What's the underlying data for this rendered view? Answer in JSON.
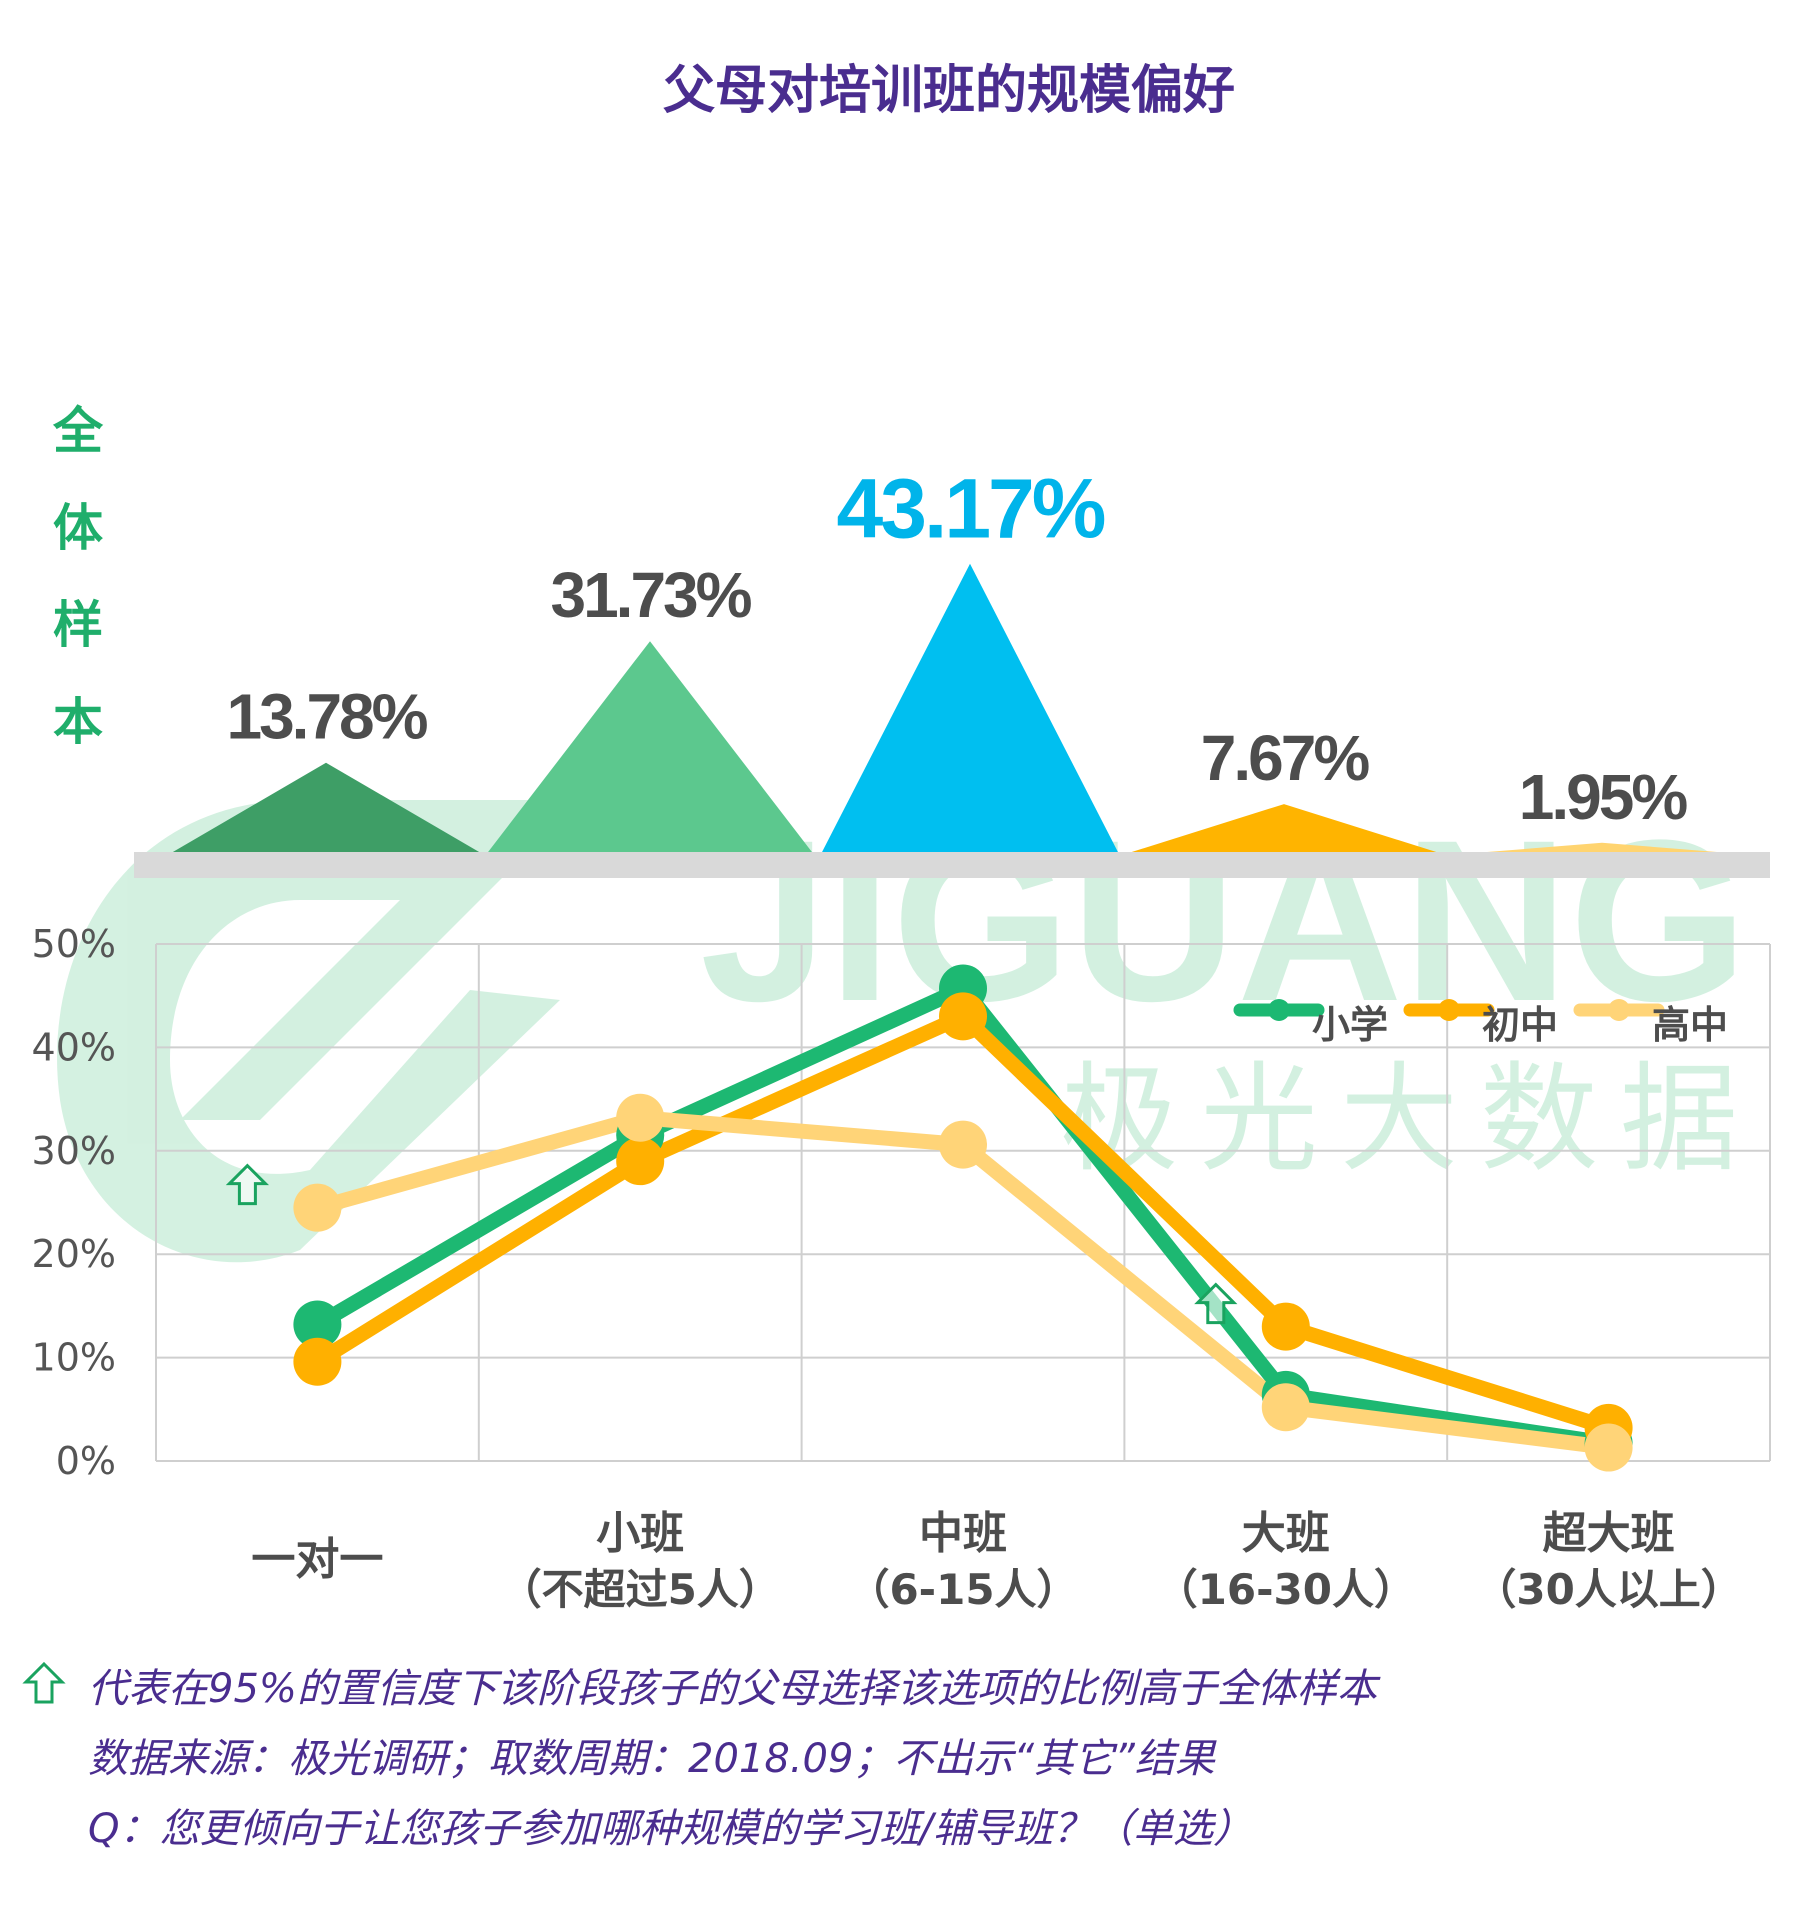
{
  "title": "父母对培训班的规模偏好",
  "sample_label": "全体样本",
  "watermark": {
    "brand": "JIGUANG",
    "cn": "极光大数据"
  },
  "colors": {
    "title": "#4a2d8f",
    "label_gray": "#4d4d4d",
    "highlight_blue": "#00b4ea",
    "sample_green": "#1fae6b",
    "tri_dark_green": "#3e9e66",
    "tri_green": "#5cc88e",
    "tri_blue": "#00bff0",
    "tri_orange": "#ffb400",
    "tri_light_orange": "#ffd470",
    "series_primary": "#1db872",
    "series_middle": "#ffb000",
    "series_high": "#ffd478",
    "arrow_green": "#1aa35f",
    "grid": "#cfcfcf",
    "axis_text": "#555555"
  },
  "chart_data": [
    {
      "type": "area",
      "title": "父母对培训班的规模偏好",
      "ylabel": "全体样本",
      "categories": [
        "一对一",
        "小班（不超过5人）",
        "中班（6-15人）",
        "大班（16-30人）",
        "超大班（30人以上）"
      ],
      "values": [
        13.78,
        31.73,
        43.17,
        7.67,
        1.95
      ],
      "value_labels": [
        "13.78%",
        "31.73%",
        "43.17%",
        "7.67%",
        "1.95%"
      ],
      "highlight_index": 2
    },
    {
      "type": "line",
      "categories": [
        "一对一",
        "小班",
        "中班",
        "大班",
        "超大班"
      ],
      "category_sublabels": [
        "",
        "（不超过5人）",
        "（6-15人）",
        "（16-30人）",
        "（30人以上）"
      ],
      "ylim": [
        0,
        50
      ],
      "yticks": [
        0,
        10,
        20,
        30,
        40,
        50
      ],
      "ytick_labels": [
        "0%",
        "10%",
        "20%",
        "30%",
        "40%",
        "50%"
      ],
      "grid": true,
      "legend_position": "top-right",
      "series": [
        {
          "name": "小学",
          "values": [
            13.2,
            31.5,
            45.7,
            6.4,
            1.7
          ]
        },
        {
          "name": "初中",
          "values": [
            9.6,
            29.0,
            43.0,
            13.0,
            3.2
          ]
        },
        {
          "name": "高中",
          "values": [
            24.5,
            33.2,
            30.6,
            5.2,
            1.3
          ]
        }
      ],
      "significance_markers": [
        {
          "series": "高中",
          "category_index": 0
        },
        {
          "series": "初中",
          "category_index": 3
        }
      ]
    }
  ],
  "footnotes": [
    "代表在95%的置信度下该阶段孩子的父母选择该选项的比例高于全体样本",
    "数据来源：极光调研；取数周期：2018.09；不出示“其它”结果",
    "Q：您更倾向于让您孩子参加哪种规模的学习班/辅导班？（单选）"
  ]
}
